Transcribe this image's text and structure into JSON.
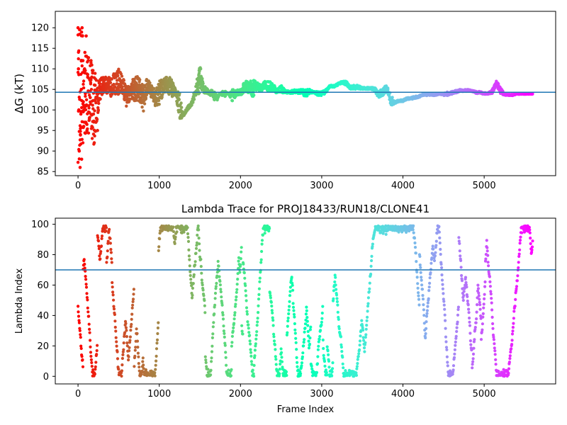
{
  "chart_data": [
    {
      "type": "scatter",
      "title": "",
      "xlabel": "",
      "ylabel": "ΔG (kT)",
      "xlim": [
        -280,
        5880
      ],
      "ylim": [
        84,
        124
      ],
      "xticks": [
        0,
        1000,
        2000,
        3000,
        4000,
        5000
      ],
      "yticks": [
        85,
        90,
        95,
        100,
        105,
        110,
        115,
        120
      ],
      "reference_line": 104.3,
      "reference_color": "#1f77b4",
      "colormap": "rainbow (red at start, violet at end)",
      "grid": false,
      "trace": {
        "x": [
          0,
          50,
          100,
          150,
          200,
          250,
          300,
          350,
          400,
          450,
          500,
          550,
          600,
          650,
          700,
          750,
          800,
          850,
          900,
          950,
          1000,
          1050,
          1100,
          1150,
          1200,
          1250,
          1300,
          1350,
          1400,
          1450,
          1500,
          1550,
          1600,
          1650,
          1700,
          1750,
          1800,
          1850,
          1900,
          1950,
          2000,
          2050,
          2100,
          2150,
          2200,
          2250,
          2300,
          2350,
          2400,
          2450,
          2500,
          2550,
          2600,
          2650,
          2700,
          2750,
          2800,
          2850,
          2900,
          2950,
          3000,
          3050,
          3100,
          3150,
          3200,
          3250,
          3300,
          3350,
          3400,
          3450,
          3500,
          3550,
          3600,
          3650,
          3700,
          3750,
          3800,
          3850,
          3900,
          3950,
          4000,
          4050,
          4100,
          4150,
          4200,
          4250,
          4300,
          4350,
          4400,
          4450,
          4500,
          4550,
          4600,
          4650,
          4700,
          4750,
          4800,
          4850,
          4900,
          4950,
          5000,
          5050,
          5100,
          5150,
          5200,
          5250,
          5300,
          5350,
          5400,
          5450,
          5500,
          5550,
          5600
        ],
        "low": [
          86,
          88,
          93,
          95,
          91,
          99,
          104,
          104,
          103,
          104,
          103,
          104,
          100,
          103,
          102,
          102,
          99,
          104,
          103,
          101,
          101,
          104,
          104,
          103,
          104,
          97.5,
          98.5,
          100,
          101,
          103.5,
          104,
          104,
          104,
          103,
          101.5,
          104,
          103,
          104,
          102,
          103.5,
          103.5,
          104,
          104,
          103,
          105,
          104.5,
          105,
          104.5,
          104.5,
          104,
          104.2,
          104,
          104,
          104,
          104,
          104,
          103,
          104,
          104,
          103.5,
          103.5,
          104,
          105.5,
          105.5,
          106,
          106.5,
          106,
          105,
          105,
          105,
          105,
          105,
          105,
          104.5,
          103,
          103.5,
          104.5,
          101,
          101.5,
          102,
          102,
          102.5,
          102.5,
          102.8,
          103,
          103.5,
          103.5,
          103.5,
          103.5,
          103.8,
          103.5,
          103.5,
          103.8,
          104,
          104.5,
          104.5,
          104.5,
          104.5,
          104,
          104,
          103.8,
          103.8,
          104,
          106,
          104,
          103.5,
          103.5,
          103.5,
          103.8,
          103.8,
          103.8,
          103.8,
          103.8
        ],
        "high": [
          120,
          120,
          114,
          112,
          110,
          108,
          108,
          108,
          108,
          109,
          110,
          108,
          106,
          106,
          109,
          108,
          106,
          108,
          106,
          105,
          107,
          108,
          108,
          108,
          105,
          104,
          99,
          101,
          102,
          106,
          111,
          106,
          105,
          105,
          104,
          104,
          105,
          104,
          105,
          105,
          105,
          107,
          107,
          107.5,
          107,
          106,
          107,
          107,
          106.5,
          105,
          106,
          105,
          104.5,
          105,
          105,
          105,
          105,
          105,
          104.5,
          104.5,
          104.5,
          105,
          106,
          106,
          106.5,
          107,
          107,
          106,
          106,
          106,
          105.5,
          105.5,
          105.5,
          105.5,
          104.5,
          105.5,
          106,
          104,
          102,
          102.5,
          102.5,
          103,
          103,
          103.5,
          103.5,
          104,
          104,
          104,
          104,
          104,
          104,
          104.5,
          104.5,
          104.8,
          105,
          105,
          105,
          104.8,
          104.5,
          104.5,
          104.2,
          104.2,
          105,
          107,
          106,
          104,
          103.8,
          103.8,
          104,
          104,
          104,
          104,
          104
        ]
      },
      "early_samples": {
        "x": [
          0,
          5,
          10,
          15,
          20,
          25,
          30,
          35,
          40,
          45,
          50,
          55,
          60,
          65,
          70,
          75,
          80,
          85,
          90,
          95,
          100,
          110,
          120,
          130,
          140,
          150,
          160,
          170,
          180,
          190,
          200,
          210,
          220,
          230,
          240,
          250
        ],
        "y": [
          120,
          110,
          100,
          90,
          119.5,
          86,
          94,
          99,
          105,
          88,
          120,
          118,
          112,
          102,
          96,
          100,
          110,
          114,
          104,
          97,
          118,
          95,
          108,
          101,
          98,
          103,
          112,
          96,
          109,
          99,
          92,
          106,
          97,
          104,
          95,
          100
        ]
      }
    },
    {
      "type": "scatter",
      "title": "Lambda Trace for PROJ18433/RUN18/CLONE41",
      "xlabel": "Frame Index",
      "ylabel": "Lambda Index",
      "xlim": [
        -280,
        5880
      ],
      "ylim": [
        -5,
        104
      ],
      "xticks": [
        0,
        1000,
        2000,
        3000,
        4000,
        5000
      ],
      "yticks": [
        0,
        20,
        40,
        60,
        80,
        100
      ],
      "reference_line": 70,
      "reference_color": "#1f77b4",
      "colormap": "rainbow (red at start, violet at end)",
      "grid": false,
      "n_frames": 5600,
      "lambda_range": [
        0,
        99
      ]
    }
  ]
}
